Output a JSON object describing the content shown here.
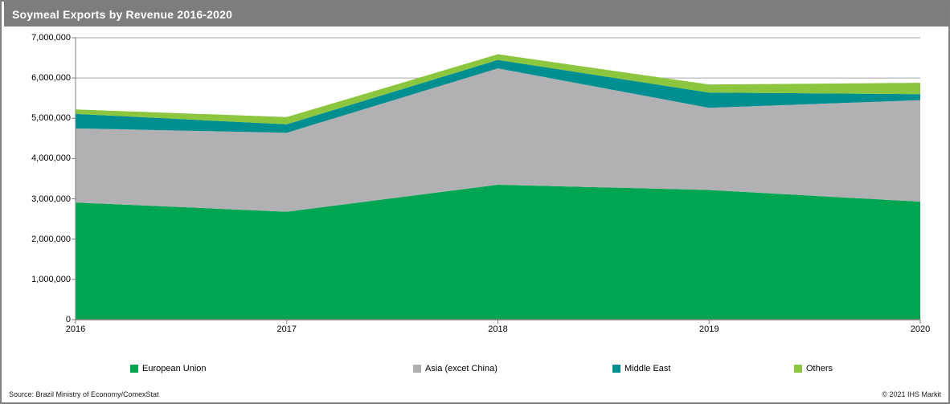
{
  "title_bar": {
    "title": "Soymeal Exports by Revenue 2016-2020"
  },
  "footer": {
    "source": "Source: Brazil Ministry of Economy/ComexStat",
    "copyright": "© 2021 IHS Markit"
  },
  "colors": {
    "title_bar_bg": "#7d7d7d",
    "title_text": "#ffffff",
    "gridline": "#a6a6a6",
    "axis": "#7f7f7f",
    "plot_background": "#ffffff"
  },
  "chart_data": {
    "type": "area",
    "stacked": true,
    "title": "Soymeal Exports by Revenue 2016-2020",
    "categories": [
      "2016",
      "2017",
      "2018",
      "2019",
      "2020"
    ],
    "series": [
      {
        "name": "European Union",
        "color": "#00a551",
        "values": [
          2910000,
          2680000,
          3350000,
          3220000,
          2930000
        ]
      },
      {
        "name": "Asia (excet China)",
        "color": "#b1b1b4",
        "values": [
          1840000,
          1960000,
          2890000,
          2040000,
          2520000
        ]
      },
      {
        "name": "Middle East",
        "color": "#008f90",
        "values": [
          360000,
          210000,
          210000,
          380000,
          150000
        ]
      },
      {
        "name": "Others",
        "color": "#8cc63e",
        "values": [
          110000,
          180000,
          140000,
          200000,
          280000
        ]
      }
    ],
    "stack_totals": [
      5220000,
      5030000,
      6590000,
      5840000,
      5880000
    ],
    "xlabel": "",
    "ylabel": "",
    "ylim": [
      0,
      7000000
    ],
    "y_tick_interval": 1000000,
    "y_tick_labels": [
      "0",
      "1,000,000",
      "2,000,000",
      "3,000,000",
      "4,000,000",
      "5,000,000",
      "6,000,000",
      "7,000,000"
    ],
    "grid": "horizontal",
    "legend_position": "bottom"
  }
}
